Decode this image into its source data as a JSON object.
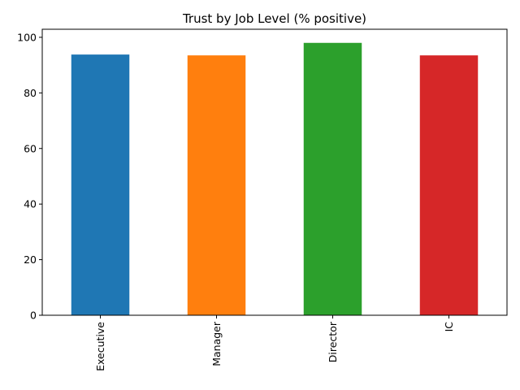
{
  "chart_data": {
    "type": "bar",
    "title": "Trust by Job Level (% positive)",
    "xlabel": "",
    "ylabel": "",
    "categories": [
      "Executive",
      "Manager",
      "Director",
      "IC"
    ],
    "values": [
      93.8,
      93.5,
      98.0,
      93.5
    ],
    "colors": [
      "#1f77b4",
      "#ff7f0e",
      "#2ca02c",
      "#d62728"
    ],
    "ylim": [
      0,
      102.9
    ],
    "yticks": [
      0,
      20,
      40,
      60,
      80,
      100
    ],
    "ytick_labels": [
      "0",
      "20",
      "40",
      "60",
      "80",
      "100"
    ],
    "grid": false,
    "legend": "none",
    "x_tick_rotation": "vertical"
  }
}
